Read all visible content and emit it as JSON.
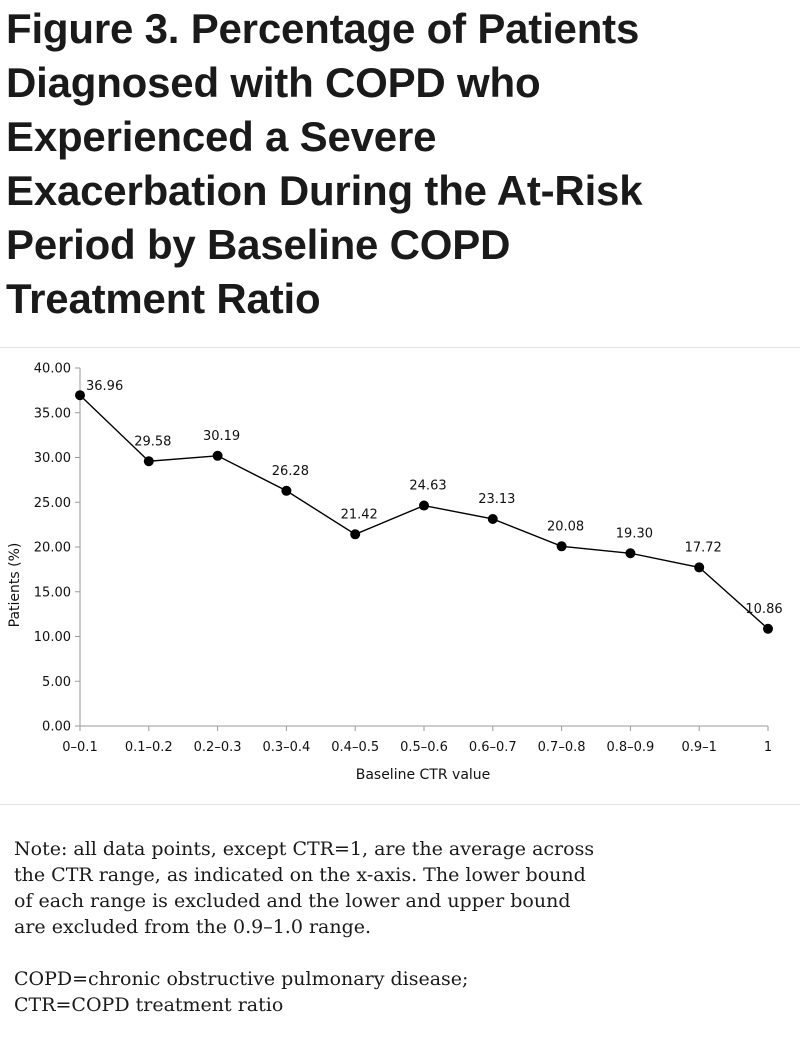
{
  "figure": {
    "title_lines": [
      "Figure 3. Percentage of Patients",
      "Diagnosed with COPD who",
      "Experienced a Severe",
      "Exacerbation During the At-Risk",
      "Period by Baseline COPD",
      "Treatment Ratio"
    ]
  },
  "chart_data": {
    "type": "line",
    "title": "Figure 3. Percentage of Patients Diagnosed with COPD who Experienced a Severe Exacerbation During the At-Risk Period by Baseline COPD Treatment Ratio",
    "xlabel": "Baseline CTR value",
    "ylabel": "Patients (%)",
    "categories": [
      "0–0.1",
      "0.1–0.2",
      "0.2–0.3",
      "0.3–0.4",
      "0.4–0.5",
      "0.5–0.6",
      "0.6–0.7",
      "0.7–0.8",
      "0.8–0.9",
      "0.9–1",
      "1"
    ],
    "values": [
      36.96,
      29.58,
      30.19,
      26.28,
      21.42,
      24.63,
      23.13,
      20.08,
      19.3,
      17.72,
      10.86
    ],
    "data_labels": [
      "36.96",
      "29.58",
      "30.19",
      "26.28",
      "21.42",
      "24.63",
      "23.13",
      "20.08",
      "19.30",
      "17.72",
      "10.86"
    ],
    "ylim": [
      0,
      40
    ],
    "y_ticks": [
      "0.00",
      "5.00",
      "10.00",
      "15.00",
      "20.00",
      "25.00",
      "30.00",
      "35.00",
      "40.00"
    ],
    "grid": false,
    "legend": "none",
    "line_color": "#000000",
    "marker": "filled-circle"
  },
  "note": {
    "lines": [
      "Note: all data points, except CTR=1, are the average across",
      "the CTR range, as indicated on the x-axis. The lower bound",
      "of each range is excluded and the lower and upper bound",
      "are excluded from the 0.9–1.0 range."
    ],
    "abbreviation_lines": [
      "COPD=chronic obstructive pulmonary disease;",
      "CTR=COPD treatment ratio"
    ]
  }
}
